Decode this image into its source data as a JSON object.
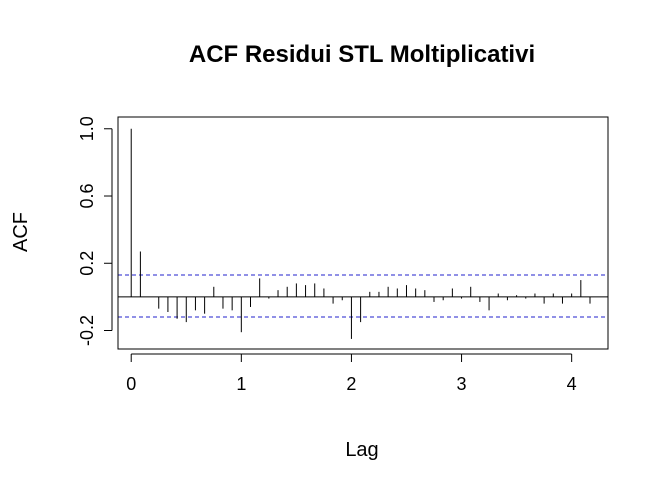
{
  "chart_data": {
    "type": "bar",
    "title": "ACF Residui STL Moltiplicativi",
    "xlabel": "Lag",
    "ylabel": "ACF",
    "xlim": [
      -0.12,
      4.33
    ],
    "ylim": [
      -0.31,
      1.07
    ],
    "x_ticks": [
      0,
      1,
      2,
      3,
      4
    ],
    "x_tick_labels": [
      "0",
      "1",
      "2",
      "3",
      "4"
    ],
    "y_ticks": [
      -0.2,
      0.2,
      0.6,
      1.0
    ],
    "y_tick_labels": [
      "-0.2",
      "0.2",
      "0.6",
      "1.0"
    ],
    "lag_step": 0.08333,
    "values": [
      1.0,
      0.27,
      0.0,
      -0.07,
      -0.09,
      -0.13,
      -0.15,
      -0.08,
      -0.1,
      0.06,
      -0.07,
      -0.08,
      -0.21,
      -0.06,
      0.11,
      -0.01,
      0.04,
      0.06,
      0.08,
      0.07,
      0.08,
      0.05,
      -0.04,
      -0.02,
      -0.25,
      -0.15,
      0.03,
      0.03,
      0.06,
      0.05,
      0.07,
      0.05,
      0.04,
      -0.03,
      -0.02,
      0.05,
      -0.01,
      0.06,
      -0.03,
      -0.08,
      0.02,
      -0.02,
      0.01,
      -0.01,
      0.02,
      -0.04,
      0.02,
      -0.04,
      0.02,
      0.1,
      -0.04
    ],
    "confidence_band": [
      0.13,
      -0.12
    ],
    "colors": {
      "bars": "#000000",
      "confidence_band": "#2222cc",
      "axes": "#000000"
    },
    "grid": false
  }
}
